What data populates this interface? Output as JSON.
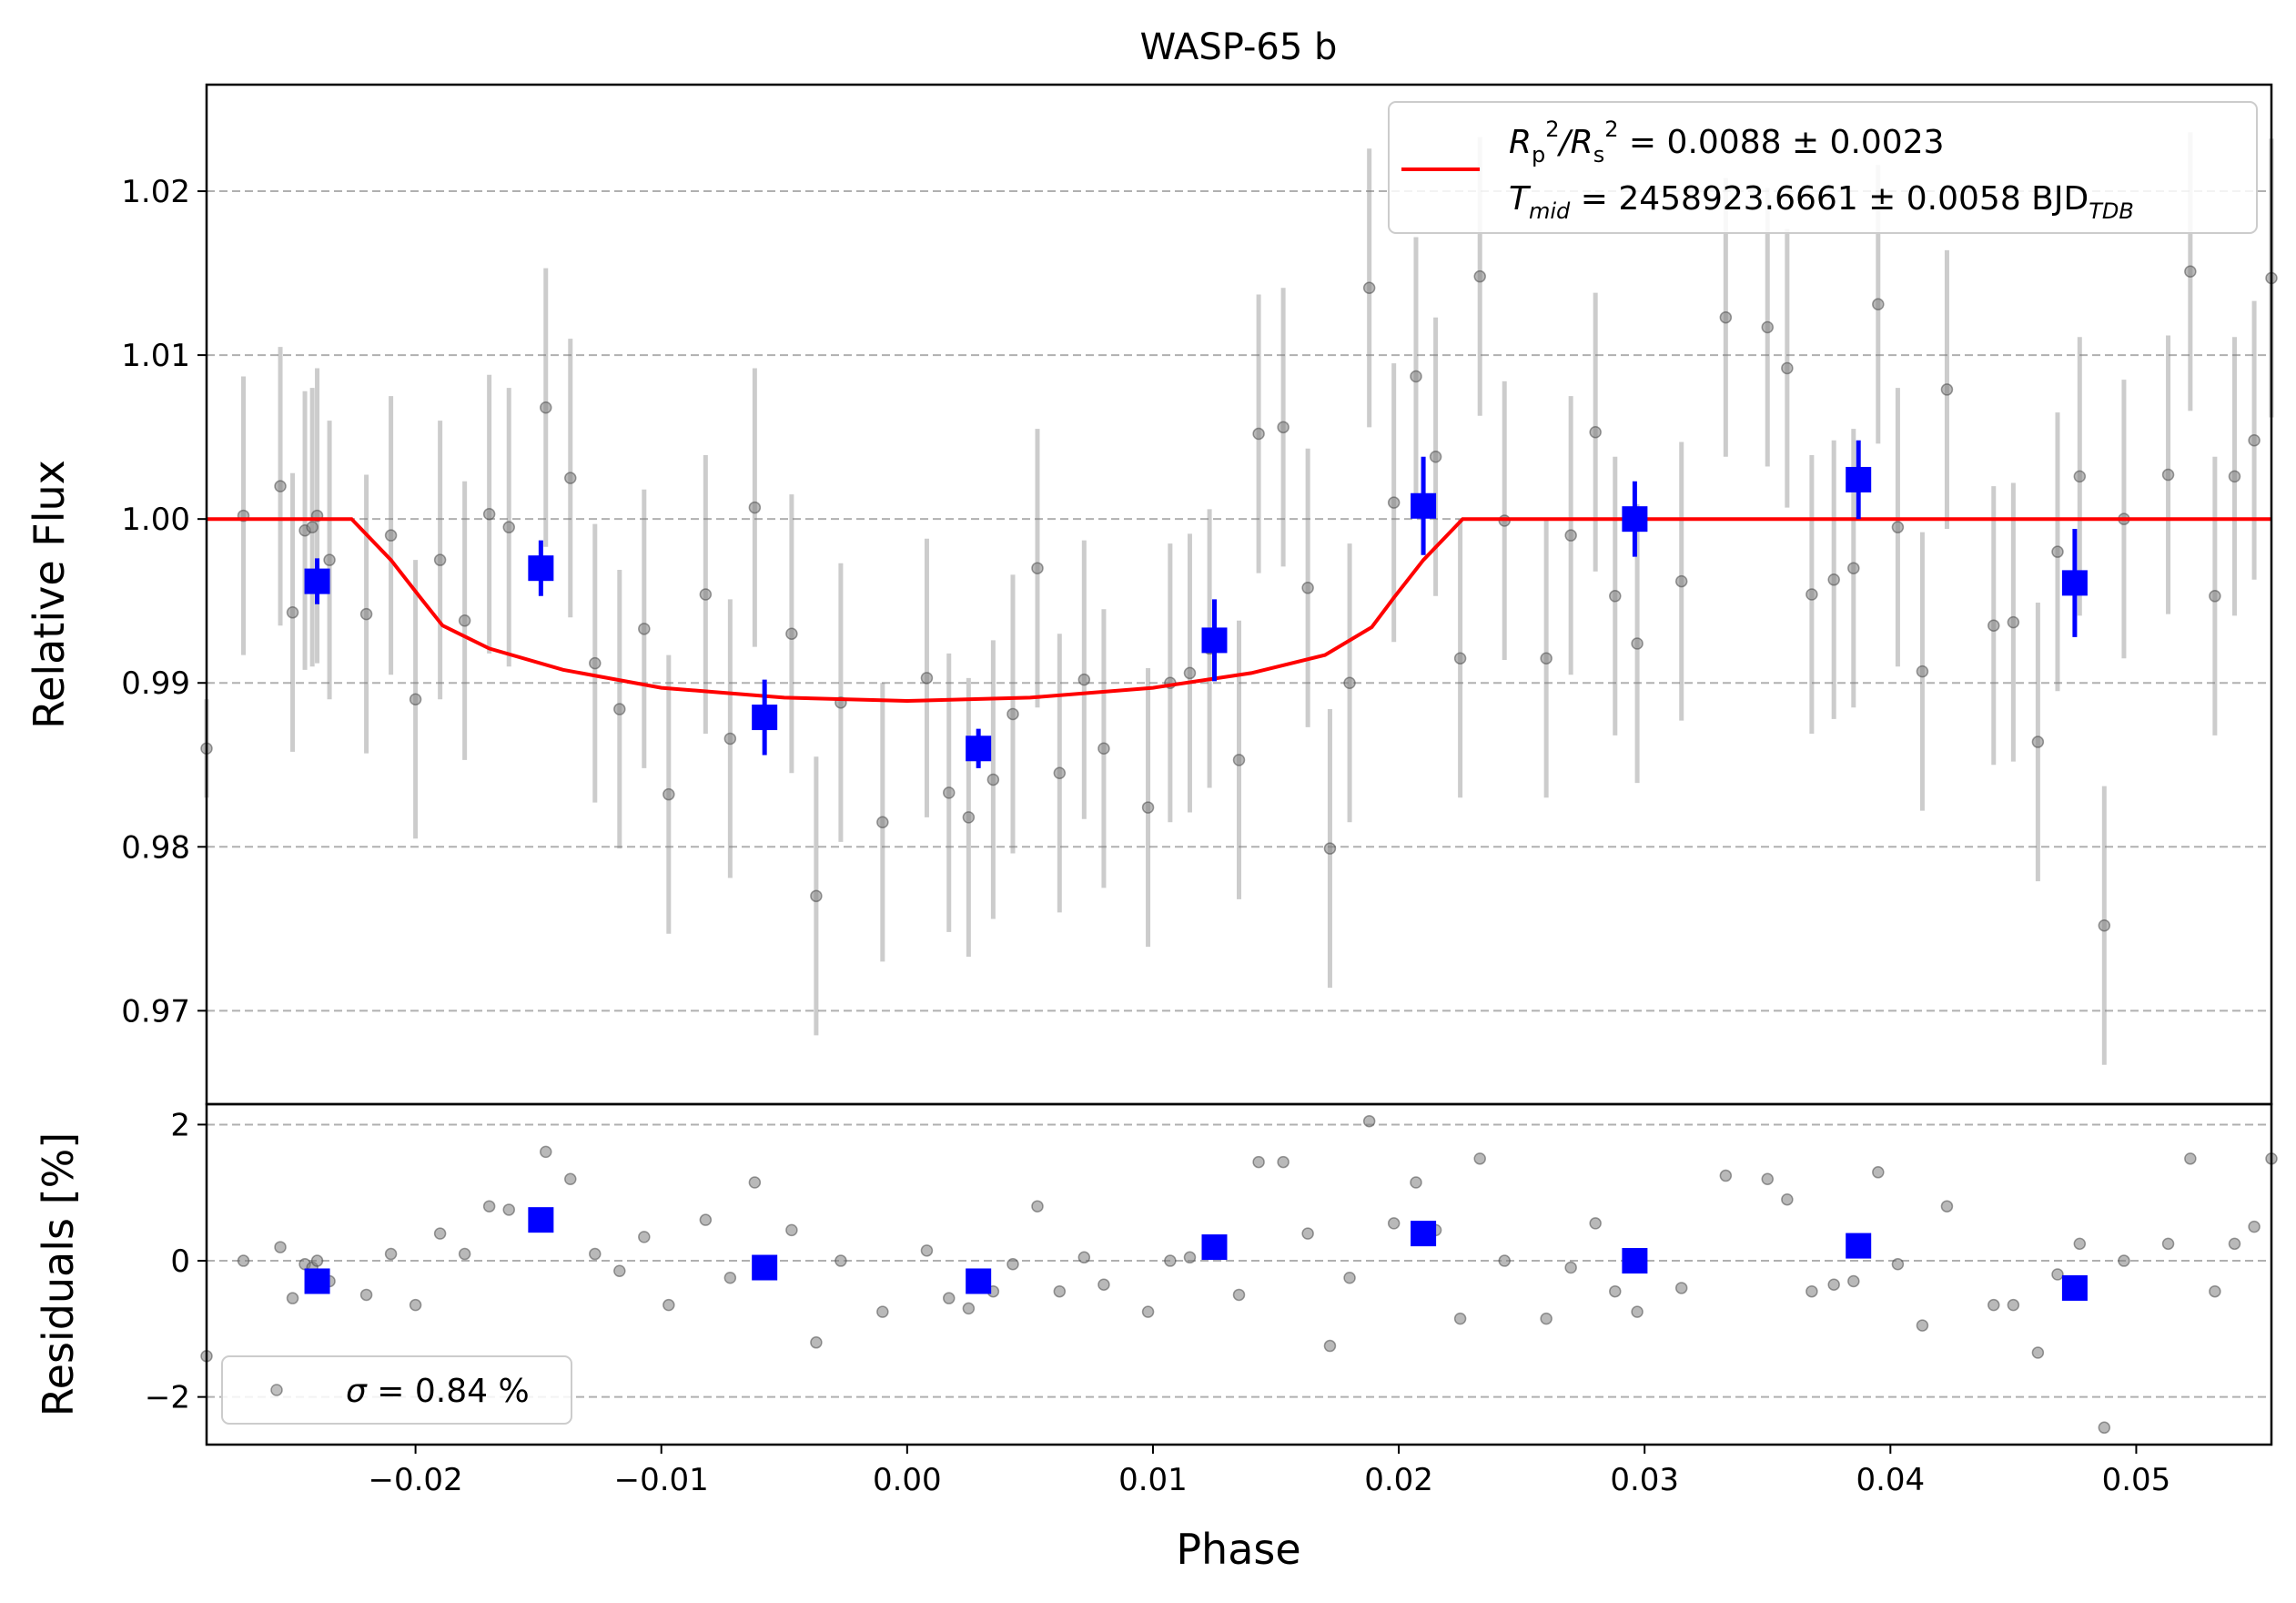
{
  "chart_data": [
    {
      "type": "scatter",
      "title": "WASP-65 b",
      "xlabel": "",
      "ylabel": "Relative Flux",
      "xlim": [
        -0.0285,
        0.0555
      ],
      "ylim": [
        0.9643,
        1.0265
      ],
      "grid": "horizontal dashed",
      "xtick_labels": [],
      "ytick_values": [
        0.97,
        0.98,
        0.99,
        1.0,
        1.01,
        1.02
      ],
      "ytick_labels": [
        "0.97",
        "0.98",
        "0.99",
        "1.00",
        "1.01",
        "1.02"
      ],
      "legend_position": "top-right",
      "legend": {
        "param_ratio": "= 0.0088 ± 0.0023",
        "param_tmid": "= 2458923.6661 ± 0.0058 BJD"
      },
      "series": [
        {
          "kind": "data",
          "color": "#808080",
          "points": [
            [
              -0.0285,
              0.986,
              0.003
            ],
            [
              -0.027,
              1.0002,
              0.0085
            ],
            [
              -0.0255,
              1.002,
              0.0085
            ],
            [
              -0.025,
              0.9943,
              0.0085
            ],
            [
              -0.0245,
              0.9993,
              0.0085
            ],
            [
              -0.0242,
              0.9995,
              0.0085
            ],
            [
              -0.024,
              1.0002,
              0.009
            ],
            [
              -0.0235,
              0.9975,
              0.0085
            ],
            [
              -0.022,
              0.9942,
              0.0085
            ],
            [
              -0.021,
              0.999,
              0.0085
            ],
            [
              -0.02,
              0.989,
              0.0085
            ],
            [
              -0.019,
              0.9975,
              0.0085
            ],
            [
              -0.018,
              0.9938,
              0.0085
            ],
            [
              -0.017,
              1.0003,
              0.0085
            ],
            [
              -0.0162,
              0.9995,
              0.0085
            ],
            [
              -0.0147,
              1.0068,
              0.0085
            ],
            [
              -0.0137,
              1.0025,
              0.0085
            ],
            [
              -0.0127,
              0.9912,
              0.0085
            ],
            [
              -0.0117,
              0.9884,
              0.0085
            ],
            [
              -0.0107,
              0.9933,
              0.0085
            ],
            [
              -0.0097,
              0.9832,
              0.0085
            ],
            [
              -0.0082,
              0.9954,
              0.0085
            ],
            [
              -0.0072,
              0.9866,
              0.0085
            ],
            [
              -0.0062,
              1.0007,
              0.0085
            ],
            [
              -0.0047,
              0.993,
              0.0085
            ],
            [
              -0.0037,
              0.977,
              0.0085
            ],
            [
              -0.0027,
              0.9888,
              0.0085
            ],
            [
              -0.001,
              0.9815,
              0.0085
            ],
            [
              0.0008,
              0.9903,
              0.0085
            ],
            [
              0.0017,
              0.9833,
              0.0085
            ],
            [
              0.0025,
              0.9818,
              0.0085
            ],
            [
              0.0035,
              0.9841,
              0.0085
            ],
            [
              0.0043,
              0.9881,
              0.0085
            ],
            [
              0.0053,
              0.997,
              0.0085
            ],
            [
              0.0062,
              0.9845,
              0.0085
            ],
            [
              0.0072,
              0.9902,
              0.0085
            ],
            [
              0.008,
              0.986,
              0.0085
            ],
            [
              0.0098,
              0.9824,
              0.0085
            ],
            [
              0.0107,
              0.99,
              0.0085
            ],
            [
              0.0115,
              0.9906,
              0.0085
            ],
            [
              0.0123,
              0.9921,
              0.0085
            ],
            [
              0.0135,
              0.9853,
              0.0085
            ],
            [
              0.0143,
              1.0052,
              0.0085
            ],
            [
              0.0153,
              1.0056,
              0.0085
            ],
            [
              0.0163,
              0.9958,
              0.0085
            ],
            [
              0.0172,
              0.9799,
              0.0085
            ],
            [
              0.018,
              0.99,
              0.0085
            ],
            [
              0.0188,
              1.0141,
              0.0085
            ],
            [
              0.0198,
              1.001,
              0.0085
            ],
            [
              0.0207,
              1.0087,
              0.0085
            ],
            [
              0.0215,
              1.0038,
              0.0085
            ],
            [
              0.0225,
              0.9915,
              0.0085
            ],
            [
              0.0233,
              1.0148,
              0.0085
            ],
            [
              0.0243,
              0.9999,
              0.0085
            ],
            [
              0.026,
              0.9915,
              0.0085
            ],
            [
              0.027,
              0.999,
              0.0085
            ],
            [
              0.028,
              1.0053,
              0.0085
            ],
            [
              0.0288,
              0.9953,
              0.0085
            ],
            [
              0.0297,
              0.9924,
              0.0085
            ],
            [
              0.0315,
              0.9962,
              0.0085
            ],
            [
              0.0333,
              1.0123,
              0.0085
            ],
            [
              0.035,
              1.0117,
              0.0085
            ],
            [
              0.0358,
              1.0092,
              0.0085
            ],
            [
              0.0368,
              0.9954,
              0.0085
            ],
            [
              0.0377,
              0.9963,
              0.0085
            ],
            [
              0.0385,
              0.997,
              0.0085
            ],
            [
              0.0395,
              1.0131,
              0.0085
            ],
            [
              0.0403,
              0.9995,
              0.0085
            ],
            [
              0.0413,
              0.9907,
              0.0085
            ],
            [
              0.0423,
              1.0079,
              0.0085
            ],
            [
              0.0442,
              0.9935,
              0.0085
            ],
            [
              0.045,
              0.9937,
              0.0085
            ],
            [
              0.046,
              0.9864,
              0.0085
            ],
            [
              0.0468,
              0.998,
              0.0085
            ],
            [
              0.0477,
              1.0026,
              0.0085
            ],
            [
              0.0487,
              0.9752,
              0.0085
            ],
            [
              0.0495,
              1.0,
              0.0085
            ],
            [
              0.0513,
              1.0027,
              0.0085
            ],
            [
              0.0522,
              1.0151,
              0.0085
            ],
            [
              0.0532,
              0.9953,
              0.0085
            ],
            [
              0.054,
              1.0026,
              0.0085
            ],
            [
              0.0548,
              1.0048,
              0.0085
            ],
            [
              0.0555,
              1.0147,
              0.0085
            ]
          ]
        },
        {
          "kind": "binned",
          "color": "#0000ff",
          "points": [
            [
              -0.024,
              0.9962,
              0.0014
            ],
            [
              -0.0149,
              0.997,
              0.0017
            ],
            [
              -0.0058,
              0.9879,
              0.0023
            ],
            [
              0.0029,
              0.986,
              0.0012
            ],
            [
              0.0125,
              0.9926,
              0.0025
            ],
            [
              0.021,
              1.0008,
              0.003
            ],
            [
              0.0296,
              1.0,
              0.0023
            ],
            [
              0.0387,
              1.0024,
              0.0024
            ],
            [
              0.0475,
              0.9961,
              0.0033
            ]
          ]
        },
        {
          "kind": "model",
          "color": "#ff0000",
          "points": [
            [
              -0.0285,
              1.0
            ],
            [
              -0.0226,
              1.0
            ],
            [
              -0.021,
              0.9975
            ],
            [
              -0.0198,
              0.9952
            ],
            [
              -0.0189,
              0.9935
            ],
            [
              -0.017,
              0.9921
            ],
            [
              -0.014,
              0.9908
            ],
            [
              -0.01,
              0.9897
            ],
            [
              -0.005,
              0.9891
            ],
            [
              0.0,
              0.9889
            ],
            [
              0.005,
              0.9891
            ],
            [
              0.01,
              0.9897
            ],
            [
              0.014,
              0.9906
            ],
            [
              0.017,
              0.9917
            ],
            [
              0.0189,
              0.9934
            ],
            [
              0.0198,
              0.9952
            ],
            [
              0.021,
              0.9975
            ],
            [
              0.0226,
              1.0
            ],
            [
              0.0555,
              1.0
            ]
          ]
        }
      ]
    },
    {
      "type": "scatter",
      "title": "",
      "xlabel": "Phase",
      "ylabel": "Residuals [%]",
      "xlim": [
        -0.0285,
        0.0555
      ],
      "ylim": [
        -2.7,
        2.3
      ],
      "grid": "horizontal dashed",
      "xtick_values": [
        -0.02,
        -0.01,
        0.0,
        0.01,
        0.02,
        0.03,
        0.04,
        0.05
      ],
      "xtick_labels": [
        "−0.02",
        "−0.01",
        "0.00",
        "0.01",
        "0.02",
        "0.03",
        "0.04",
        "0.05"
      ],
      "ytick_values": [
        -2,
        0,
        2
      ],
      "ytick_labels": [
        "−2",
        "0",
        "2"
      ],
      "legend_position": "bottom-left",
      "legend": {
        "sigma": "= 0.84 %"
      },
      "series": [
        {
          "kind": "data",
          "color": "#808080",
          "points": [
            [
              -0.0285,
              -1.4
            ],
            [
              -0.027,
              0.0
            ],
            [
              -0.0255,
              0.2
            ],
            [
              -0.025,
              -0.55
            ],
            [
              -0.0245,
              -0.05
            ],
            [
              -0.0242,
              -0.1
            ],
            [
              -0.024,
              0.0
            ],
            [
              -0.0235,
              -0.3
            ],
            [
              -0.022,
              -0.5
            ],
            [
              -0.021,
              0.1
            ],
            [
              -0.02,
              -0.65
            ],
            [
              -0.019,
              0.4
            ],
            [
              -0.018,
              0.1
            ],
            [
              -0.017,
              0.8
            ],
            [
              -0.0162,
              0.75
            ],
            [
              -0.0147,
              1.6
            ],
            [
              -0.0137,
              1.2
            ],
            [
              -0.0127,
              0.1
            ],
            [
              -0.0117,
              -0.15
            ],
            [
              -0.0107,
              0.35
            ],
            [
              -0.0097,
              -0.65
            ],
            [
              -0.0082,
              0.6
            ],
            [
              -0.0072,
              -0.25
            ],
            [
              -0.0062,
              1.15
            ],
            [
              -0.0047,
              0.45
            ],
            [
              -0.0037,
              -1.2
            ],
            [
              -0.0027,
              0.0
            ],
            [
              -0.001,
              -0.75
            ],
            [
              0.0008,
              0.15
            ],
            [
              0.0017,
              -0.55
            ],
            [
              0.0025,
              -0.7
            ],
            [
              0.0035,
              -0.45
            ],
            [
              0.0043,
              -0.05
            ],
            [
              0.0053,
              0.8
            ],
            [
              0.0062,
              -0.45
            ],
            [
              0.0072,
              0.05
            ],
            [
              0.008,
              -0.35
            ],
            [
              0.0098,
              -0.75
            ],
            [
              0.0107,
              0.0
            ],
            [
              0.0115,
              0.05
            ],
            [
              0.0123,
              0.15
            ],
            [
              0.0135,
              -0.5
            ],
            [
              0.0143,
              1.45
            ],
            [
              0.0153,
              1.45
            ],
            [
              0.0163,
              0.4
            ],
            [
              0.0172,
              -1.25
            ],
            [
              0.018,
              -0.25
            ],
            [
              0.0188,
              2.05
            ],
            [
              0.0198,
              0.55
            ],
            [
              0.0207,
              1.15
            ],
            [
              0.0215,
              0.45
            ],
            [
              0.0225,
              -0.85
            ],
            [
              0.0233,
              1.5
            ],
            [
              0.0243,
              0.0
            ],
            [
              0.026,
              -0.85
            ],
            [
              0.027,
              -0.1
            ],
            [
              0.028,
              0.55
            ],
            [
              0.0288,
              -0.45
            ],
            [
              0.0297,
              -0.75
            ],
            [
              0.0315,
              -0.4
            ],
            [
              0.0333,
              1.25
            ],
            [
              0.035,
              1.2
            ],
            [
              0.0358,
              0.9
            ],
            [
              0.0368,
              -0.45
            ],
            [
              0.0377,
              -0.35
            ],
            [
              0.0385,
              -0.3
            ],
            [
              0.0395,
              1.3
            ],
            [
              0.0403,
              -0.05
            ],
            [
              0.0413,
              -0.95
            ],
            [
              0.0423,
              0.8
            ],
            [
              0.0442,
              -0.65
            ],
            [
              0.045,
              -0.65
            ],
            [
              0.046,
              -1.35
            ],
            [
              0.0468,
              -0.2
            ],
            [
              0.0477,
              0.25
            ],
            [
              0.0487,
              -2.45
            ],
            [
              0.0495,
              0.0
            ],
            [
              0.0513,
              0.25
            ],
            [
              0.0522,
              1.5
            ],
            [
              0.0532,
              -0.45
            ],
            [
              0.054,
              0.25
            ],
            [
              0.0548,
              0.5
            ],
            [
              0.0555,
              1.5
            ]
          ]
        },
        {
          "kind": "binned",
          "color": "#0000ff",
          "points": [
            [
              -0.024,
              -0.3
            ],
            [
              -0.0149,
              0.6
            ],
            [
              -0.0058,
              -0.1
            ],
            [
              0.0029,
              -0.3
            ],
            [
              0.0125,
              0.2
            ],
            [
              0.021,
              0.4
            ],
            [
              0.0296,
              0.0
            ],
            [
              0.0387,
              0.22
            ],
            [
              0.0475,
              -0.4
            ]
          ]
        }
      ]
    }
  ]
}
